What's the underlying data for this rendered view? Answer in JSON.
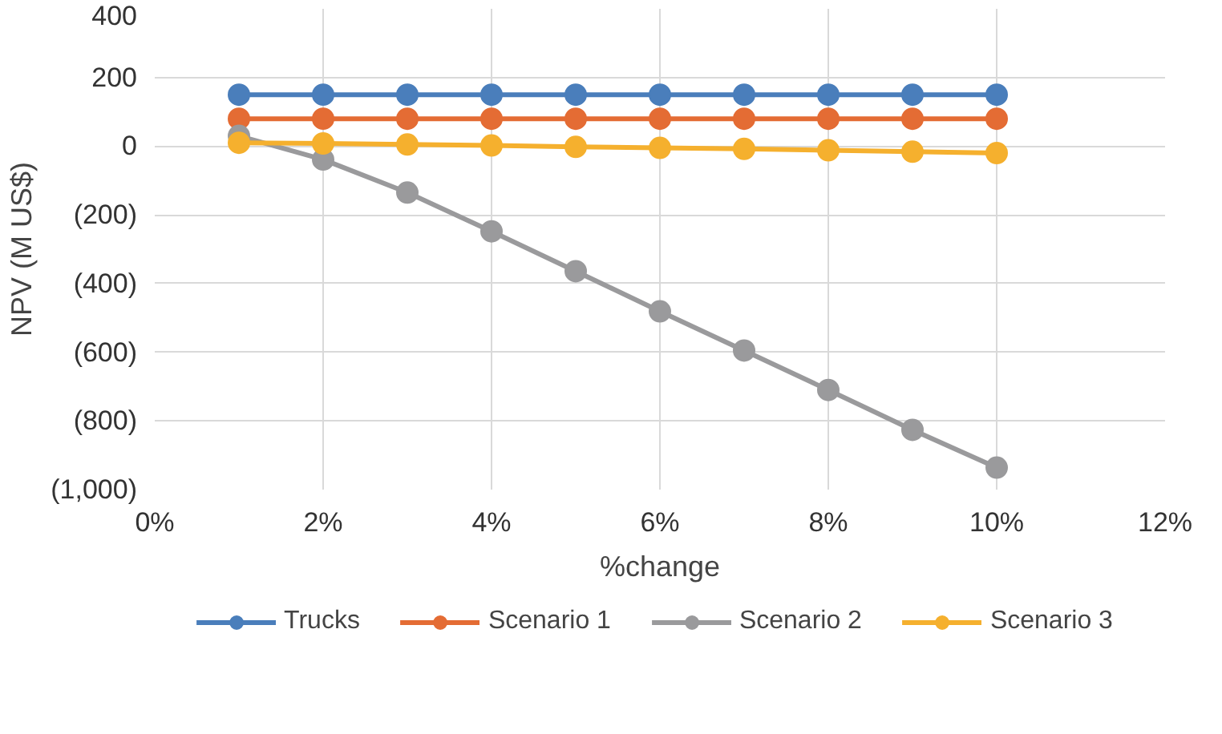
{
  "chart_data": {
    "type": "line",
    "xlabel": "%change",
    "ylabel": "NPV (M US$)",
    "x": [
      1,
      2,
      3,
      4,
      5,
      6,
      7,
      8,
      9,
      10
    ],
    "xlim": [
      0,
      12
    ],
    "xticks": [
      {
        "value": 0,
        "label": "0%"
      },
      {
        "value": 2,
        "label": "2%"
      },
      {
        "value": 4,
        "label": "4%"
      },
      {
        "value": 6,
        "label": "6%"
      },
      {
        "value": 8,
        "label": "8%"
      },
      {
        "value": 10,
        "label": "10%"
      },
      {
        "value": 12,
        "label": "12%"
      }
    ],
    "ylim": [
      -1000,
      400
    ],
    "yticks": [
      {
        "value": -1000,
        "label": "(1,000)"
      },
      {
        "value": -800,
        "label": "(800)"
      },
      {
        "value": -600,
        "label": "(600)"
      },
      {
        "value": -400,
        "label": "(400)"
      },
      {
        "value": -200,
        "label": "(200)"
      },
      0,
      200,
      400
    ],
    "series": [
      {
        "name": "Trucks",
        "color": "#4a7ebb",
        "values": [
          150,
          150,
          150,
          150,
          150,
          150,
          150,
          150,
          150,
          150
        ]
      },
      {
        "name": "Scenario 1",
        "color": "#e46c34",
        "values": [
          80,
          80,
          80,
          80,
          80,
          80,
          80,
          80,
          80,
          80
        ]
      },
      {
        "name": "Scenario 2",
        "color": "#9a9a9c",
        "values": [
          30,
          -39,
          -135,
          -248,
          -364,
          -481,
          -595,
          -710,
          -826,
          -936
        ]
      },
      {
        "name": "Scenario 3",
        "color": "#f5b02e",
        "values": [
          10,
          8,
          5,
          2,
          -2,
          -5,
          -8,
          -12,
          -16,
          -20
        ]
      }
    ],
    "grid": true,
    "legend": "bottom",
    "marker": "circle",
    "line_style": "solid"
  }
}
